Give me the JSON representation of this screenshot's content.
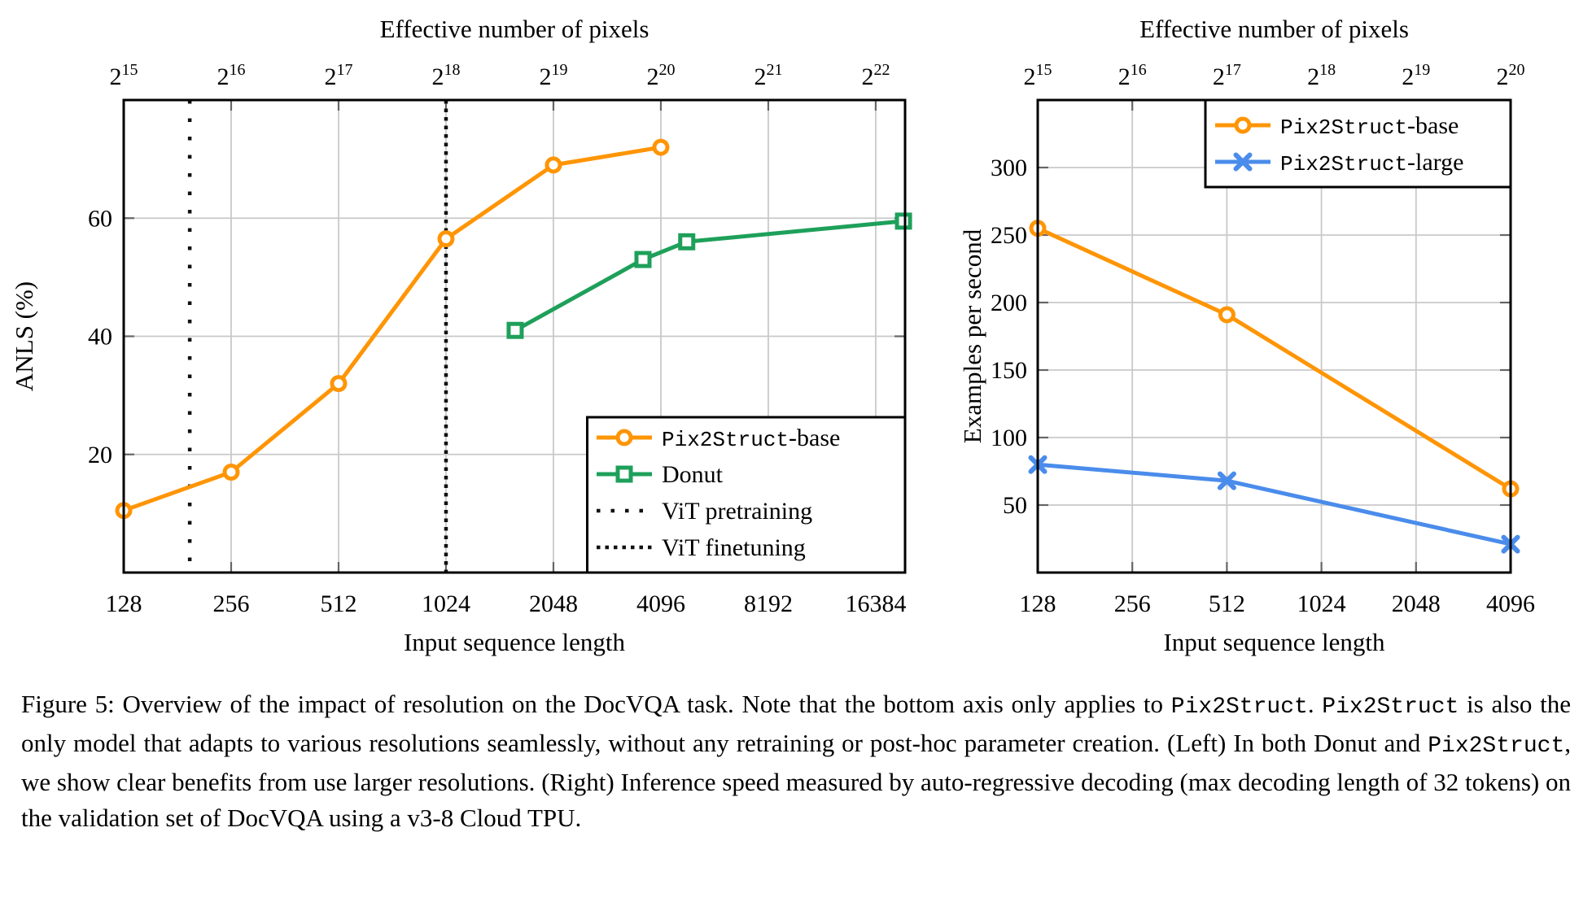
{
  "figure": {
    "name": "Figure 5",
    "caption": {
      "runs": [
        {
          "font": "serif",
          "text": "Figure 5: Overview of the impact of resolution on the DocVQA task.  Note that the bottom axis only applies to "
        },
        {
          "font": "mono",
          "text": "Pix2Struct"
        },
        {
          "font": "serif",
          "text": ". "
        },
        {
          "font": "mono",
          "text": "Pix2Struct"
        },
        {
          "font": "serif",
          "text": " is also the only model that adapts to various resolutions seamlessly, without any retraining or post-hoc parameter creation. (Left) In both Donut and "
        },
        {
          "font": "mono",
          "text": "Pix2Struct"
        },
        {
          "font": "serif",
          "text": ", we show clear benefits from use larger resolutions. (Right) Inference speed measured by auto-regressive decoding (max decoding length of 32 tokens) on the validation set of DocVQA using a v3-8 Cloud TPU."
        }
      ]
    }
  },
  "chart_data": [
    {
      "id": "left",
      "type": "line",
      "x_scale": "log2",
      "xlim": [
        128,
        19800
      ],
      "ylim": [
        0,
        80
      ],
      "x_ticks": [
        128,
        256,
        512,
        1024,
        2048,
        4096,
        8192,
        16384
      ],
      "y_ticks": [
        20,
        40,
        60
      ],
      "xlabel": "Input sequence length",
      "ylabel": "ANLS (%)",
      "top_axis": {
        "title": "Effective number of pixels",
        "ticks": [
          "2^15",
          "2^16",
          "2^17",
          "2^18",
          "2^19",
          "2^20",
          "2^21",
          "2^22"
        ]
      },
      "grid": true,
      "grid_color": "#C9C9C9",
      "axis_color": "#000000",
      "series": [
        {
          "name": "Pix2Struct-base",
          "color": "#FF9505",
          "marker": "circle",
          "points": [
            [
              128,
              10.5
            ],
            [
              256,
              17
            ],
            [
              512,
              32
            ],
            [
              1024,
              56.5
            ],
            [
              2048,
              69
            ],
            [
              4096,
              72
            ]
          ]
        },
        {
          "name": "Donut",
          "color": "#1EA05A",
          "marker": "square",
          "points": [
            [
              1600,
              41
            ],
            [
              3650,
              53
            ],
            [
              4840,
              56
            ],
            [
              19600,
              59.5
            ]
          ]
        }
      ],
      "vlines": [
        {
          "name": "ViT pretraining",
          "x": 196,
          "style": "sparse-dotted",
          "color": "#111111"
        },
        {
          "name": "ViT finetuning",
          "x": 1024,
          "style": "dense-dotted",
          "color": "#111111"
        }
      ],
      "legend": {
        "position": "south-east",
        "entries": [
          {
            "swatch": "series:0",
            "label_runs": [
              {
                "font": "mono",
                "text": "Pix2Struct"
              },
              {
                "font": "serif",
                "text": "-base"
              }
            ]
          },
          {
            "swatch": "series:1",
            "label_runs": [
              {
                "font": "serif",
                "text": "Donut"
              }
            ]
          },
          {
            "swatch": "vline:0",
            "label_runs": [
              {
                "font": "serif",
                "text": "ViT pretraining"
              }
            ]
          },
          {
            "swatch": "vline:1",
            "label_runs": [
              {
                "font": "serif",
                "text": "ViT finetuning"
              }
            ]
          }
        ]
      }
    },
    {
      "id": "right",
      "type": "line",
      "x_scale": "log2",
      "xlim": [
        128,
        4096
      ],
      "ylim": [
        0,
        350
      ],
      "x_ticks": [
        128,
        256,
        512,
        1024,
        2048,
        4096
      ],
      "y_ticks": [
        50,
        100,
        150,
        200,
        250,
        300
      ],
      "xlabel": "Input sequence length",
      "ylabel": "Examples per second",
      "top_axis": {
        "title": "Effective number of pixels",
        "ticks": [
          "2^15",
          "2^16",
          "2^17",
          "2^18",
          "2^19",
          "2^20"
        ]
      },
      "grid": true,
      "grid_color": "#C9C9C9",
      "axis_color": "#000000",
      "series": [
        {
          "name": "Pix2Struct-base",
          "color": "#FF9505",
          "marker": "circle",
          "points": [
            [
              128,
              255
            ],
            [
              512,
              191
            ],
            [
              4096,
              62
            ]
          ]
        },
        {
          "name": "Pix2Struct-large",
          "color": "#4A8CEB",
          "marker": "x",
          "points": [
            [
              128,
              80
            ],
            [
              512,
              68
            ],
            [
              4096,
              21
            ]
          ]
        }
      ],
      "vlines": [],
      "legend": {
        "position": "north-east",
        "entries": [
          {
            "swatch": "series:0",
            "label_runs": [
              {
                "font": "mono",
                "text": "Pix2Struct"
              },
              {
                "font": "serif",
                "text": "-base"
              }
            ]
          },
          {
            "swatch": "series:1",
            "label_runs": [
              {
                "font": "mono",
                "text": "Pix2Struct"
              },
              {
                "font": "serif",
                "text": "-large"
              }
            ]
          }
        ]
      }
    }
  ]
}
